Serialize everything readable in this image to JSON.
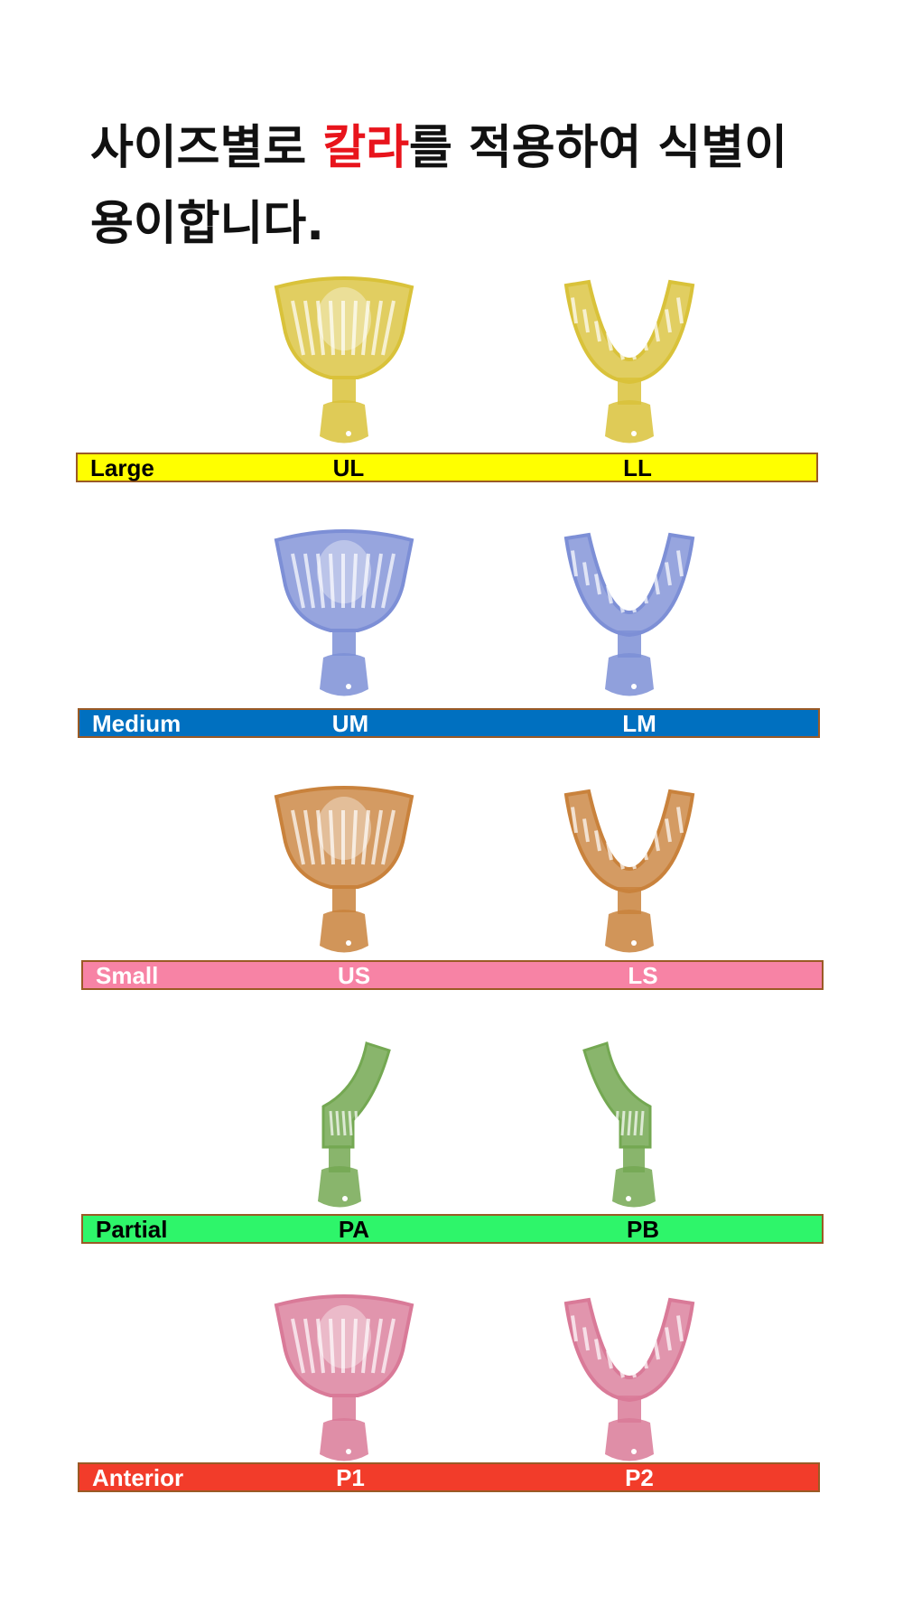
{
  "title": {
    "line1_before": "사이즈별로 ",
    "line1_highlight": "칼라",
    "line1_after": "를 적용하여 식별이",
    "line2": "용이합니다.",
    "highlight_color": "#e8141c"
  },
  "rows": [
    {
      "size": "Large",
      "code_left": "UL",
      "code_right": "LL",
      "bar_color": "#ffff00",
      "text_color": "#000000",
      "tray_color": "#d9c23a",
      "kind": "full"
    },
    {
      "size": "Medium",
      "code_left": "UM",
      "code_right": "LM",
      "bar_color": "#0070c0",
      "text_color": "#ffffff",
      "tray_color": "#7d8fd6",
      "kind": "full"
    },
    {
      "size": "Small",
      "code_left": "US",
      "code_right": "LS",
      "bar_color": "#f783a5",
      "text_color": "#ffffff",
      "tray_color": "#c9823c",
      "kind": "full"
    },
    {
      "size": "Partial",
      "code_left": "PA",
      "code_right": "PB",
      "bar_color": "#2ef56a",
      "text_color": "#000000",
      "tray_color": "#74a852",
      "kind": "partial"
    },
    {
      "size": "Anterior",
      "code_left": "P1",
      "code_right": "P2",
      "bar_color": "#f23c2a",
      "text_color": "#ffffff",
      "tray_color": "#d97a98",
      "kind": "full"
    }
  ]
}
